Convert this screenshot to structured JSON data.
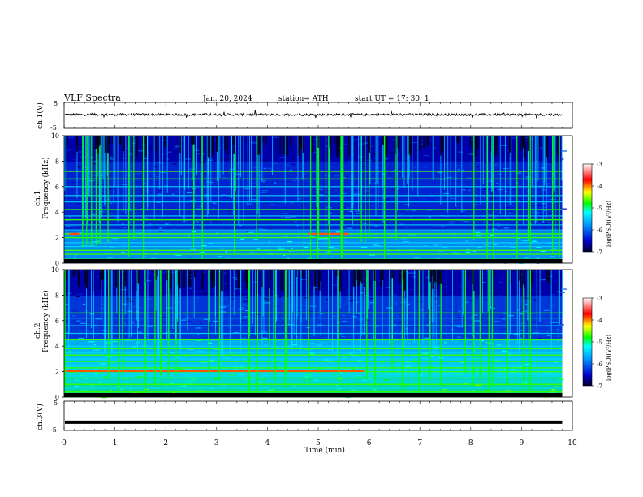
{
  "header": {
    "title": "VLF  Spectra",
    "date": "Jan. 20, 2024",
    "station": "station= ATH",
    "start": "start  UT  =   17: 30: 1"
  },
  "chart_data": [
    {
      "id": "ch1",
      "type": "line",
      "ylabel": "ch.1(V)",
      "yticks": [
        "5",
        "-5"
      ],
      "ylim": [
        -5,
        5
      ],
      "xlim": [
        0,
        10
      ],
      "trace_level": 0.3,
      "trace_range": [
        -1,
        1.3
      ],
      "trace_end_min": 9.8
    },
    {
      "id": "ch1-spec",
      "type": "heatmap",
      "ylabel": "ch.1\nFrequency  (kHz)",
      "ylabel_lines": [
        "ch.1",
        "Frequency  (kHz)"
      ],
      "yticks": [
        "0",
        "2",
        "4",
        "6",
        "8",
        "10"
      ],
      "ylim": [
        0,
        10
      ],
      "xlim": [
        0,
        10
      ],
      "data_end_min": 9.8,
      "colorbar": {
        "label": "log(PSD)(V²/Hz)",
        "ticks": [
          "-3",
          "-4",
          "-5",
          "-6",
          "-7"
        ],
        "range": [
          -7,
          -3
        ],
        "colors": [
          "#000040",
          "#0000ff",
          "#00c8ff",
          "#00ff00",
          "#ffff00",
          "#ff0000",
          "#ffffff"
        ]
      },
      "strong_bands_khz": [
        0.3,
        0.7,
        1.0,
        2.0,
        2.3,
        3.4,
        4.2,
        6.6,
        7.2
      ],
      "medium_bands_khz": [
        1.3,
        1.6,
        2.6,
        3.0,
        3.7,
        4.8,
        5.3,
        6.0
      ],
      "highlight_band": {
        "freq_khz": 2.3,
        "segments_min": [
          [
            0.1,
            0.3
          ],
          [
            4.8,
            5.6
          ]
        ]
      }
    },
    {
      "id": "ch2-spec",
      "type": "heatmap",
      "ylabel_lines": [
        "ch.2",
        "Frequency  (kHz)"
      ],
      "yticks": [
        "0",
        "2",
        "4",
        "6",
        "8",
        "10"
      ],
      "ylim": [
        0,
        10
      ],
      "xlim": [
        0,
        10
      ],
      "data_end_min": 9.8,
      "colorbar": {
        "label": "log(PSD)(V²/Hz)",
        "ticks": [
          "-3",
          "-4",
          "-5",
          "-6",
          "-7"
        ],
        "range": [
          -7,
          -3
        ]
      },
      "strong_bands_khz": [
        0.4,
        1.0,
        1.5,
        2.0,
        2.3,
        2.8,
        3.3,
        3.8,
        4.5,
        6.6
      ],
      "medium_bands_khz": [
        0.7,
        1.2,
        1.8,
        2.5,
        3.0,
        3.5,
        4.0,
        5.0,
        5.6,
        6.2
      ],
      "highlight_band": {
        "freq_khz": 2.05,
        "segments_min": [
          [
            0.0,
            5.9
          ]
        ]
      }
    },
    {
      "id": "ch3",
      "type": "line",
      "ylabel": "ch.3(V)",
      "yticks": [
        "5",
        "-5"
      ],
      "ylim": [
        -5,
        5
      ],
      "xlim": [
        0,
        10
      ],
      "trace_level": -2.2,
      "trace_end_min": 9.8
    }
  ],
  "xaxis": {
    "label": "Time  (min)",
    "ticks": [
      "0",
      "1",
      "2",
      "3",
      "4",
      "5",
      "6",
      "7",
      "8",
      "9",
      "10"
    ]
  }
}
